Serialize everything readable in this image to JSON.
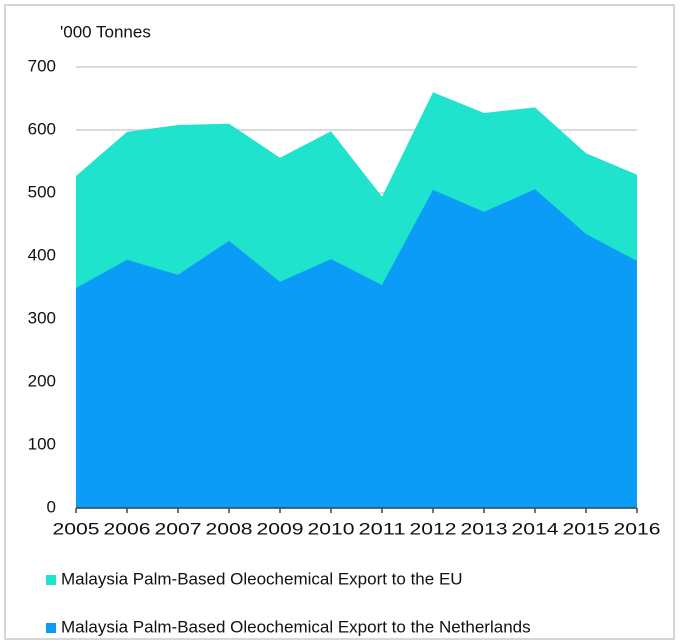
{
  "chart_data": {
    "type": "area",
    "y_label": "'000 Tonnes",
    "x": [
      2005,
      2006,
      2007,
      2008,
      2009,
      2010,
      2011,
      2012,
      2013,
      2014,
      2015,
      2016
    ],
    "series": [
      {
        "name": "Malaysia Palm-Based Oleochemical Export to the EU",
        "color": "#1fe3cc",
        "values": [
          527,
          597,
          608,
          610,
          556,
          598,
          494,
          660,
          627,
          636,
          563,
          529
        ]
      },
      {
        "name": "Malaysia Palm-Based Oleochemical Export to the Netherlands",
        "color": "#0a9cf6",
        "values": [
          349,
          394,
          370,
          424,
          359,
          395,
          354,
          505,
          470,
          506,
          435,
          392
        ]
      }
    ],
    "xlim": [
      2005,
      2016
    ],
    "xticks": [
      2005,
      2006,
      2007,
      2008,
      2009,
      2010,
      2011,
      2012,
      2013,
      2014,
      2015,
      2016
    ],
    "ylim": [
      0,
      700
    ],
    "yticks": [
      0,
      100,
      200,
      300,
      400,
      500,
      600,
      700
    ],
    "grid": true,
    "legend": "bottom"
  }
}
